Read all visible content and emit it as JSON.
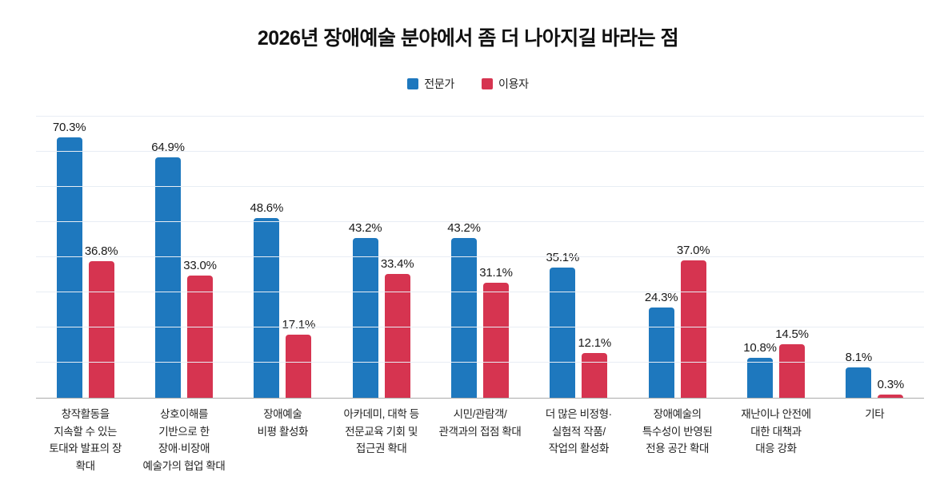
{
  "chart_data": {
    "type": "bar",
    "title": "2026년 장애예술 분야에서 좀 더 나아지길 바라는 점",
    "categories": [
      "창작활동을\n지속할 수 있는\n토대와 발표의 장\n확대",
      "상호이해를\n기반으로 한\n장애·비장애\n예술가의 협업 확대",
      "장애예술\n비평 활성화",
      "아카데미, 대학 등\n전문교육 기회 및\n접근권 확대",
      "시민/관람객/\n관객과의 접점 확대",
      "더 많은 비정형·\n실험적 작품/\n작업의 활성화",
      "장애예술의\n특수성이 반영된\n전용 공간 확대",
      "재난이나 안전에\n대한 대책과\n대응 강화",
      "기타"
    ],
    "series": [
      {
        "name": "전문가",
        "color": "#1e78be",
        "values": [
          70.3,
          64.9,
          48.6,
          43.2,
          43.2,
          35.1,
          24.3,
          10.8,
          8.1
        ]
      },
      {
        "name": "이용자",
        "color": "#d63450",
        "values": [
          36.8,
          33.0,
          17.1,
          33.4,
          31.1,
          12.1,
          37.0,
          14.5,
          0.3
        ]
      }
    ],
    "value_suffix": "%",
    "ylim": [
      0,
      80
    ],
    "grid_interval": 10,
    "grid": true,
    "legend_position": "top",
    "gridline_color": "#e8edf4",
    "baseline_color": "#ababab",
    "value_label_color": "#191919",
    "title_color": "#111111"
  }
}
